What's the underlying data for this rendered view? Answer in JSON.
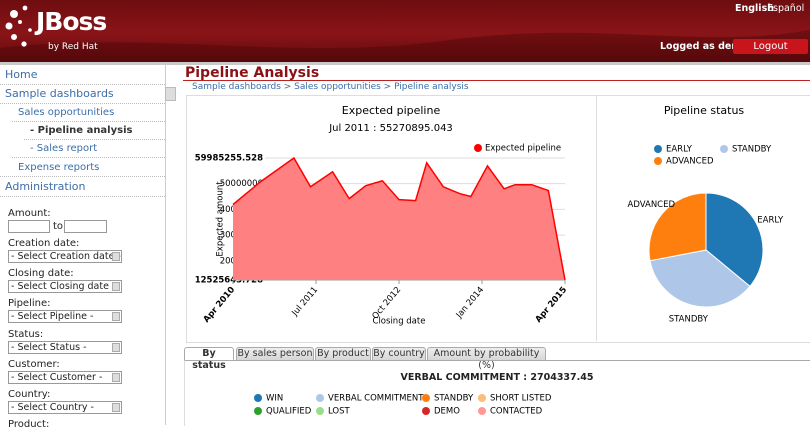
{
  "header": {
    "logo": "JBoss",
    "logo_sub": "by Red Hat",
    "languages": [
      "English",
      "Español"
    ],
    "user": "Logged as demo",
    "logout": "Logout"
  },
  "sidebar": {
    "nav": [
      "Home",
      "Sample dashboards",
      "Sales opportunities",
      "- Pipeline analysis",
      "- Sales report",
      "Expense reports",
      "Administration"
    ],
    "filters": {
      "amount": "Amount:",
      "to": "to",
      "fields": [
        {
          "label": "Creation date:",
          "select": "- Select Creation date -"
        },
        {
          "label": "Closing date:",
          "select": "- Select Closing date -"
        },
        {
          "label": "Pipeline:",
          "select": "- Select Pipeline -"
        },
        {
          "label": "Status:",
          "select": "- Select Status -"
        },
        {
          "label": "Customer:",
          "select": "- Select Customer -"
        },
        {
          "label": "Country:",
          "select": "- Select Country -"
        }
      ],
      "last": "Product:"
    }
  },
  "page": {
    "title": "Pipeline Analysis",
    "breadcrumb": "Sample dashboards > Sales opportunities > Pipeline analysis"
  },
  "chart_data": [
    {
      "type": "area",
      "title": "Expected pipeline",
      "subtitle": "Jul 2011 : 55270895.043",
      "x_label": "Closing date",
      "y_label": "Expected amount",
      "x": [
        "2010-04",
        "2010-09",
        "2011-03",
        "2011-06",
        "2011-10",
        "2012-01",
        "2012-04",
        "2012-07",
        "2012-10",
        "2013-01",
        "2013-03",
        "2013-06",
        "2013-09",
        "2013-11",
        "2014-02",
        "2014-05",
        "2014-07",
        "2014-10",
        "2015-01",
        "2015-04"
      ],
      "series": [
        {
          "name": "Expected pipeline",
          "color": "#ff0000",
          "fill": "#ff8080",
          "values": [
            41900000,
            50800000,
            59985255.528,
            48800000,
            54600000,
            44200000,
            49200000,
            51100000,
            43800000,
            43400000,
            58100000,
            48800000,
            46100000,
            45000000,
            56900000,
            48000000,
            49600000,
            49600000,
            47300000,
            12525643.728
          ]
        }
      ],
      "xlim": [
        "2010-04",
        "2015-04"
      ],
      "xticks": [
        {
          "value": "2010-04",
          "label": "Apr 2010"
        },
        {
          "value": "2011-07",
          "label": "Jul 2011"
        },
        {
          "value": "2012-10",
          "label": "Oct 2012"
        },
        {
          "value": "2014-01",
          "label": "Jan 2014"
        },
        {
          "value": "2015-04",
          "label": "Apr 2015"
        }
      ],
      "ylim": [
        12525643.728,
        59985255.528
      ],
      "yticks": [
        12525643.728,
        20000000,
        30000000,
        40000000,
        50000000,
        59985255.528
      ],
      "grid": true
    },
    {
      "type": "pie",
      "title": "Pipeline status",
      "categories": [
        "EARLY",
        "STANDBY",
        "ADVANCED"
      ],
      "values": [
        36,
        36,
        28
      ],
      "colors": [
        "#1f77b4",
        "#aec7e8",
        "#ff7f0e"
      ]
    }
  ],
  "tabs": [
    "By status",
    "By sales person",
    "By product",
    "By country",
    "Amount by probability (%)"
  ],
  "status_chart": {
    "title": "VERBAL COMMITMENT : 2704337.45",
    "legend": [
      {
        "name": "WIN",
        "color": "#1f77b4"
      },
      {
        "name": "VERBAL COMMITMENT",
        "color": "#aec7e8"
      },
      {
        "name": "STANDBY",
        "color": "#ff7f0e"
      },
      {
        "name": "SHORT LISTED",
        "color": "#ffbb78"
      },
      {
        "name": "QUALIFIED",
        "color": "#2ca02c"
      },
      {
        "name": "LOST",
        "color": "#98df8a"
      },
      {
        "name": "DEMO",
        "color": "#d62728"
      },
      {
        "name": "CONTACTED",
        "color": "#ff9896"
      }
    ]
  }
}
